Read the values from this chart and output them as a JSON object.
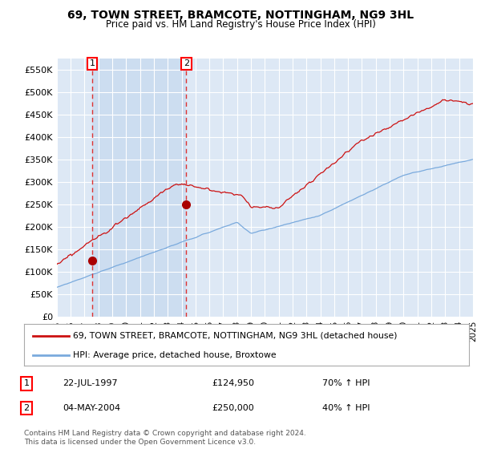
{
  "title": "69, TOWN STREET, BRAMCOTE, NOTTINGHAM, NG9 3HL",
  "subtitle": "Price paid vs. HM Land Registry's House Price Index (HPI)",
  "ylim": [
    0,
    575000
  ],
  "yticks": [
    0,
    50000,
    100000,
    150000,
    200000,
    250000,
    300000,
    350000,
    400000,
    450000,
    500000,
    550000
  ],
  "ytick_labels": [
    "£0",
    "£50K",
    "£100K",
    "£150K",
    "£200K",
    "£250K",
    "£300K",
    "£350K",
    "£400K",
    "£450K",
    "£500K",
    "£550K"
  ],
  "xstart_year": 1995,
  "xend_year": 2025,
  "sale1_year": 1997.55,
  "sale1_price": 124950,
  "sale2_year": 2004.34,
  "sale2_price": 250000,
  "legend_line1": "69, TOWN STREET, BRAMCOTE, NOTTINGHAM, NG9 3HL (detached house)",
  "legend_line2": "HPI: Average price, detached house, Broxtowe",
  "annotation1_label": "1",
  "annotation1_date": "22-JUL-1997",
  "annotation1_price": "£124,950",
  "annotation1_hpi": "70% ↑ HPI",
  "annotation2_label": "2",
  "annotation2_date": "04-MAY-2004",
  "annotation2_price": "£250,000",
  "annotation2_hpi": "40% ↑ HPI",
  "footer": "Contains HM Land Registry data © Crown copyright and database right 2024.\nThis data is licensed under the Open Government Licence v3.0.",
  "hpi_color": "#7aaadd",
  "price_color": "#cc1111",
  "dot_color": "#aa0000",
  "vline_color": "#dd3333",
  "bg_color": "#dde8f5",
  "shade_color": "#ccddf0",
  "grid_color": "#ffffff"
}
